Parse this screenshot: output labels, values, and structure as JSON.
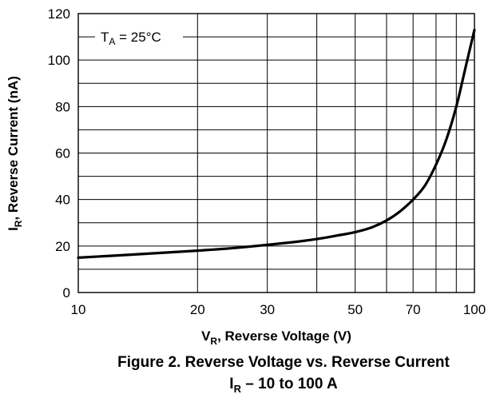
{
  "chart_data": {
    "type": "line",
    "x_scale": "log",
    "y_scale": "linear",
    "xlim": [
      10,
      100
    ],
    "ylim": [
      0,
      120
    ],
    "x_ticks": [
      10,
      20,
      30,
      50,
      70,
      100
    ],
    "x_tick_labels": [
      "10",
      "20",
      "30",
      "50",
      "70",
      "100"
    ],
    "x_minor_grid": [
      40,
      60,
      80,
      90
    ],
    "y_ticks": [
      0,
      20,
      40,
      60,
      80,
      100,
      120
    ],
    "y_tick_labels": [
      "0",
      "20",
      "40",
      "60",
      "80",
      "100",
      "120"
    ],
    "y_minor_grid": [
      10,
      30,
      50,
      70,
      90,
      110
    ],
    "grid": true,
    "xlabel": {
      "main": "V",
      "sub": "R",
      "rest": ", Reverse Voltage (V)"
    },
    "ylabel": {
      "main": "I",
      "sub": "R",
      "rest": ", Reverse Current (nA)"
    },
    "annotation": {
      "main": "T",
      "sub": "A",
      "rest": " = 25°C",
      "position": "top-left"
    },
    "series": [
      {
        "x": [
          10,
          15,
          20,
          25,
          30,
          35,
          40,
          45,
          50,
          55,
          60,
          65,
          70,
          75,
          80,
          85,
          90,
          95,
          100
        ],
        "y": [
          15,
          16.7,
          18,
          19.2,
          20.5,
          21.7,
          23,
          24.5,
          26,
          28,
          31,
          35,
          40,
          46,
          55,
          66,
          80,
          97,
          113
        ]
      }
    ]
  },
  "caption": {
    "line1": "Figure 2. Reverse Voltage vs. Reverse Current",
    "line2_main": "I",
    "line2_sub": "R",
    "line2_rest": " – 10 to 100 A"
  }
}
